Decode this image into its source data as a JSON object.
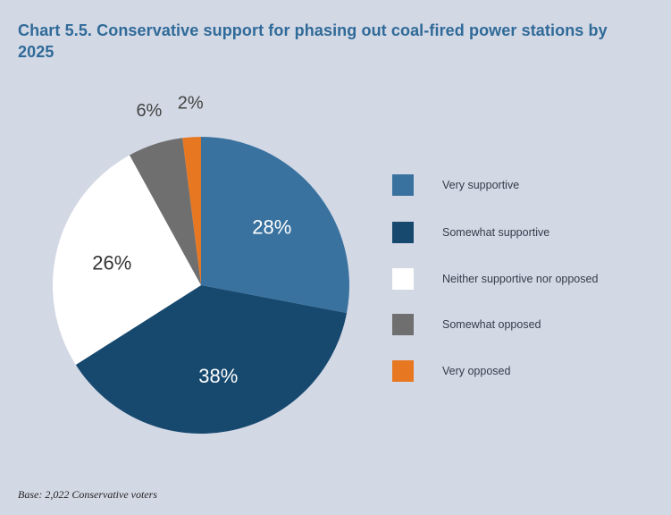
{
  "chart_data": {
    "type": "pie",
    "title": "Chart 5.5. Conservative support for phasing out coal-fired power stations by 2025",
    "slices": [
      {
        "label": "Very supportive",
        "value": 28,
        "display": "28%",
        "color": "#3a729f",
        "label_color": "#ffffff"
      },
      {
        "label": "Somewhat supportive",
        "value": 38,
        "display": "38%",
        "color": "#17496f",
        "label_color": "#ffffff"
      },
      {
        "label": "Neither supportive nor opposed",
        "value": 26,
        "display": "26%",
        "color": "#ffffff",
        "label_color": "#333333"
      },
      {
        "label": "Somewhat opposed",
        "value": 6,
        "display": "6%",
        "color": "#6f6f6f",
        "label_color": "#444444"
      },
      {
        "label": "Very opposed",
        "value": 2,
        "display": "2%",
        "color": "#e87722",
        "label_color": "#444444"
      }
    ],
    "legend_position": "right",
    "base_note": "Base: 2,022 Conservative voters"
  },
  "colors": {
    "background": "#d3d8e5",
    "title": "#2f6a98"
  }
}
